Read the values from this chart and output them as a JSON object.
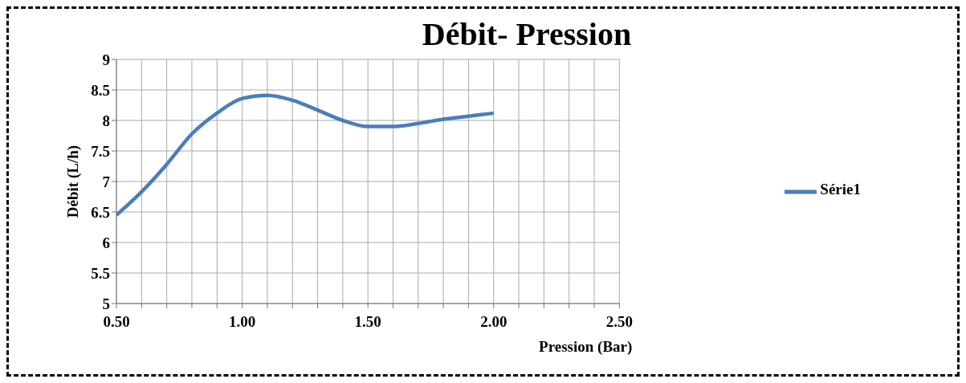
{
  "chart_data": {
    "type": "line",
    "title": "Débit- Pression",
    "xlabel": "Pression (Bar)",
    "ylabel": "Débit (L/h)",
    "x": [
      0.5,
      0.6,
      0.7,
      0.8,
      0.9,
      1.0,
      1.1,
      1.2,
      1.3,
      1.4,
      1.5,
      1.6,
      1.7,
      1.8,
      1.9,
      2.0
    ],
    "series": [
      {
        "name": "Série1",
        "color": "#4a7ebb",
        "values": [
          6.45,
          6.83,
          7.28,
          7.78,
          8.12,
          8.36,
          8.41,
          8.33,
          8.17,
          8.0,
          7.9,
          7.9,
          7.95,
          8.02,
          8.07,
          8.12
        ]
      }
    ],
    "xlim": [
      0.5,
      2.5
    ],
    "xticks": [
      {
        "value": 0.5,
        "label": "0.50"
      },
      {
        "value": 0.6,
        "label": null
      },
      {
        "value": 0.7,
        "label": null
      },
      {
        "value": 0.8,
        "label": null
      },
      {
        "value": 0.9,
        "label": null
      },
      {
        "value": 1.0,
        "label": "1.00"
      },
      {
        "value": 1.1,
        "label": null
      },
      {
        "value": 1.2,
        "label": null
      },
      {
        "value": 1.3,
        "label": null
      },
      {
        "value": 1.4,
        "label": null
      },
      {
        "value": 1.5,
        "label": "1.50"
      },
      {
        "value": 1.6,
        "label": null
      },
      {
        "value": 1.7,
        "label": null
      },
      {
        "value": 1.8,
        "label": null
      },
      {
        "value": 1.9,
        "label": null
      },
      {
        "value": 2.0,
        "label": "2.00"
      },
      {
        "value": 2.1,
        "label": null
      },
      {
        "value": 2.2,
        "label": null
      },
      {
        "value": 2.3,
        "label": null
      },
      {
        "value": 2.4,
        "label": null
      },
      {
        "value": 2.5,
        "label": "2.50"
      }
    ],
    "ylim": [
      5,
      9
    ],
    "yticks": [
      5,
      5.5,
      6,
      6.5,
      7,
      7.5,
      8,
      8.5,
      9
    ],
    "grid": true,
    "legend": "right",
    "marker": "none",
    "line_style": "solid"
  }
}
